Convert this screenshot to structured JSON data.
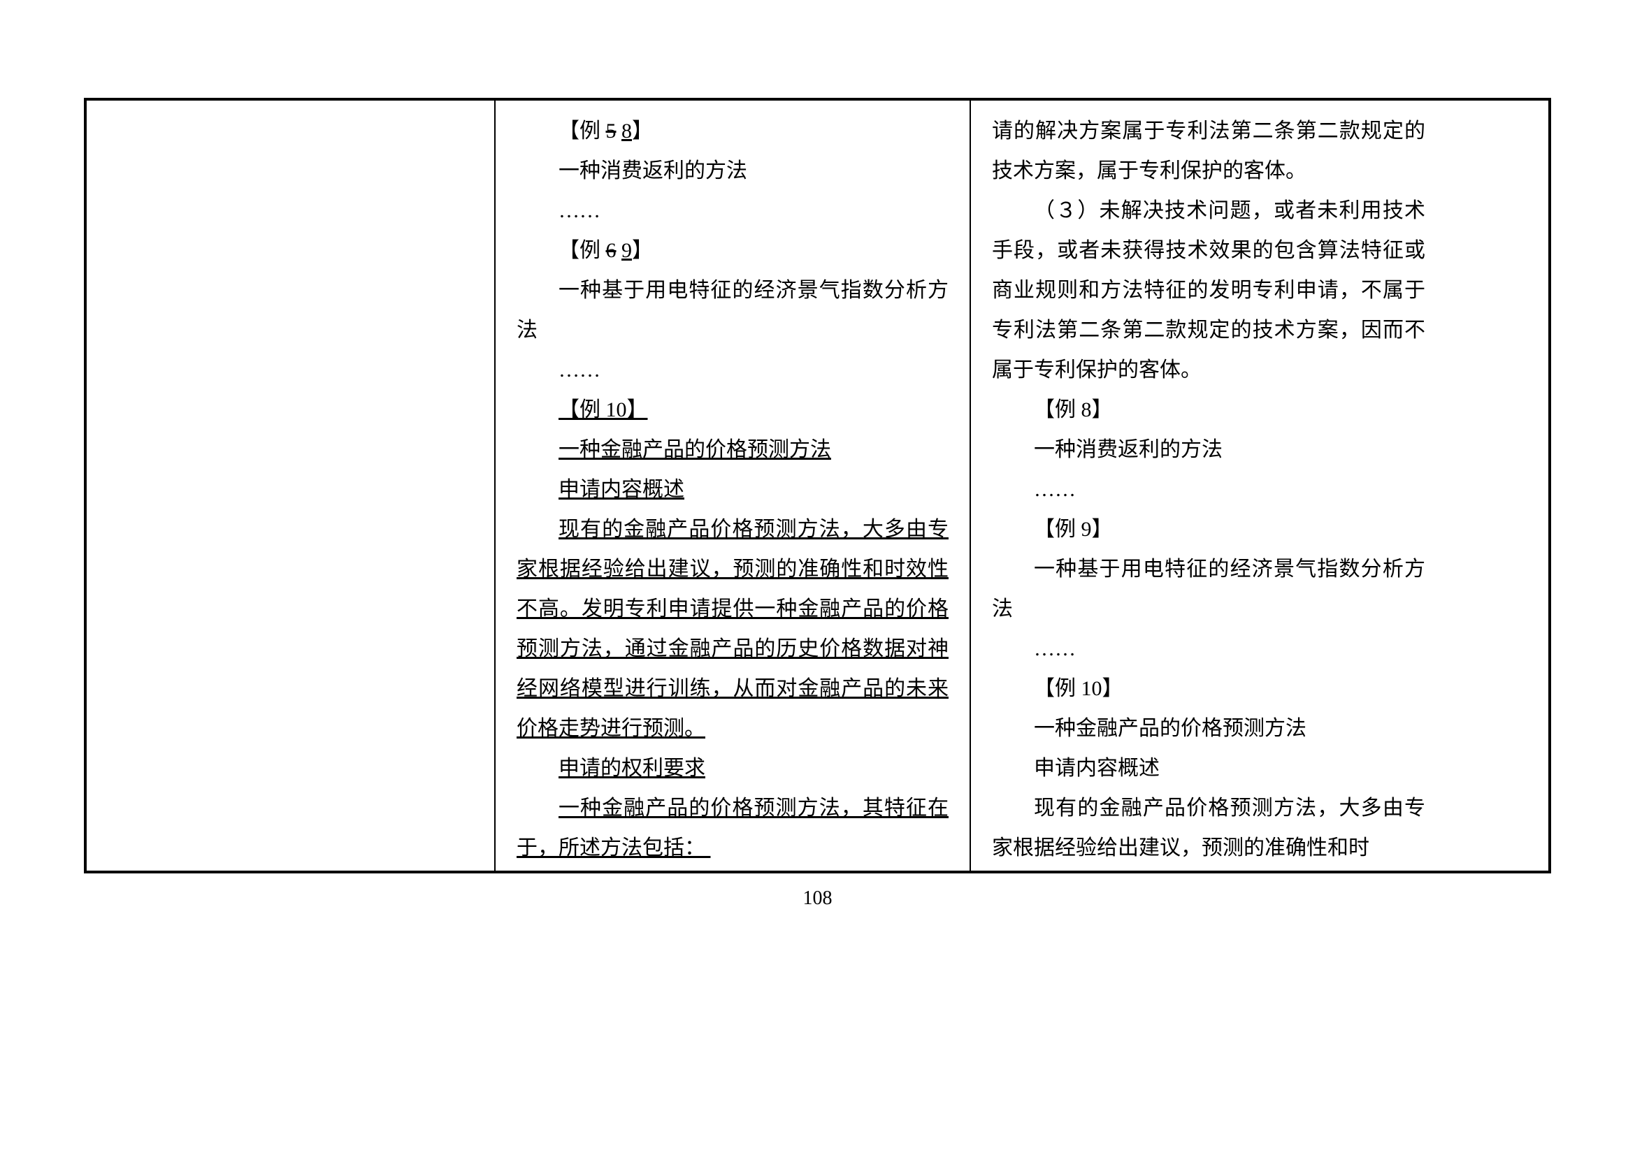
{
  "pageNumber": "108",
  "col2": {
    "l1_pre": "【例 ",
    "l1_strike": "5",
    "l1_mid": " ",
    "l1_u": "8",
    "l1_post": "】",
    "l2": "一种消费返利的方法",
    "l3": "……",
    "l4_pre": "【例 ",
    "l4_strike": "6",
    "l4_mid": " ",
    "l4_u": "9",
    "l4_post": "】",
    "l5": "一种基于用电特征的经济景气指数分析方法",
    "l6": "……",
    "l7": "【例 10】",
    "l8": "一种金融产品的价格预测方法",
    "l9": "申请内容概述",
    "l10": "现有的金融产品价格预测方法，大多由专家根据经验给出建议，预测的准确性和时效性不高。发明专利申请提供一种金融产品的价格预测方法，通过金融产品的历史价格数据对神经网络模型进行训练，从而对金融产品的未来价格走势进行预测。",
    "l11": "申请的权利要求",
    "l12": "一种金融产品的价格预测方法，其特征在于，所述方法包括： "
  },
  "col3": {
    "l1": "请的解决方案属于专利法第二条第二款规定的技术方案，属于专利保护的客体。",
    "l2": "（３）未解决技术问题，或者未利用技术手段，或者未获得技术效果的包含算法特征或商业规则和方法特征的发明专利申请，不属于专利法第二条第二款规定的技术方案，因而不属于专利保护的客体。",
    "l3": "【例 8】",
    "l4": "一种消费返利的方法",
    "l5": "……",
    "l6": "【例 9】",
    "l7": "一种基于用电特征的经济景气指数分析方法",
    "l8": "……",
    "l9": "【例 10】",
    "l10": "一种金融产品的价格预测方法",
    "l11": "申请内容概述",
    "l12": "现有的金融产品价格预测方法，大多由专家根据经验给出建议，预测的准确性和时"
  }
}
